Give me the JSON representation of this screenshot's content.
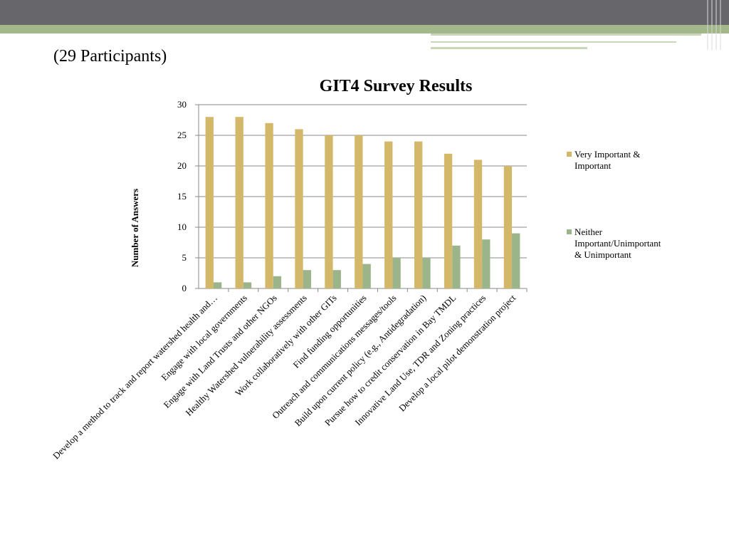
{
  "chart_data": {
    "type": "bar",
    "title": "GIT4 Survey Results",
    "subtitle": "(29 Participants)",
    "y_label": "Number of Answers",
    "categories": [
      "Develop a method to track and report watershed health and…",
      "Engage with local governments",
      "Engage with Land Trusts and other NGOs",
      "Healthy Watershed vulnerability assessments",
      "Work collaboratively with other GITs",
      "Find funding opportunities",
      "Outreach and communications messages/tools",
      "Build upon current policy (e.g., Antidegradation)",
      "Pursue how to credit conservation in Bay TMDL",
      "Innovative Land Use, TDR and Zoning practices",
      "Develop a local pilot demonstration project"
    ],
    "series": [
      {
        "name": "Very Important & Important",
        "color": "#d4b86a",
        "values": [
          28,
          28,
          27,
          26,
          25,
          25,
          24,
          24,
          22,
          21,
          20
        ]
      },
      {
        "name": "Neither Important/Unimportant & Unimportant",
        "color": "#9cb48a",
        "values": [
          1,
          1,
          2,
          3,
          3,
          4,
          5,
          5,
          7,
          8,
          9
        ]
      }
    ],
    "ylim": [
      0,
      30
    ],
    "yticks": [
      0,
      5,
      10,
      15,
      20,
      25,
      30
    ],
    "grid": true
  }
}
